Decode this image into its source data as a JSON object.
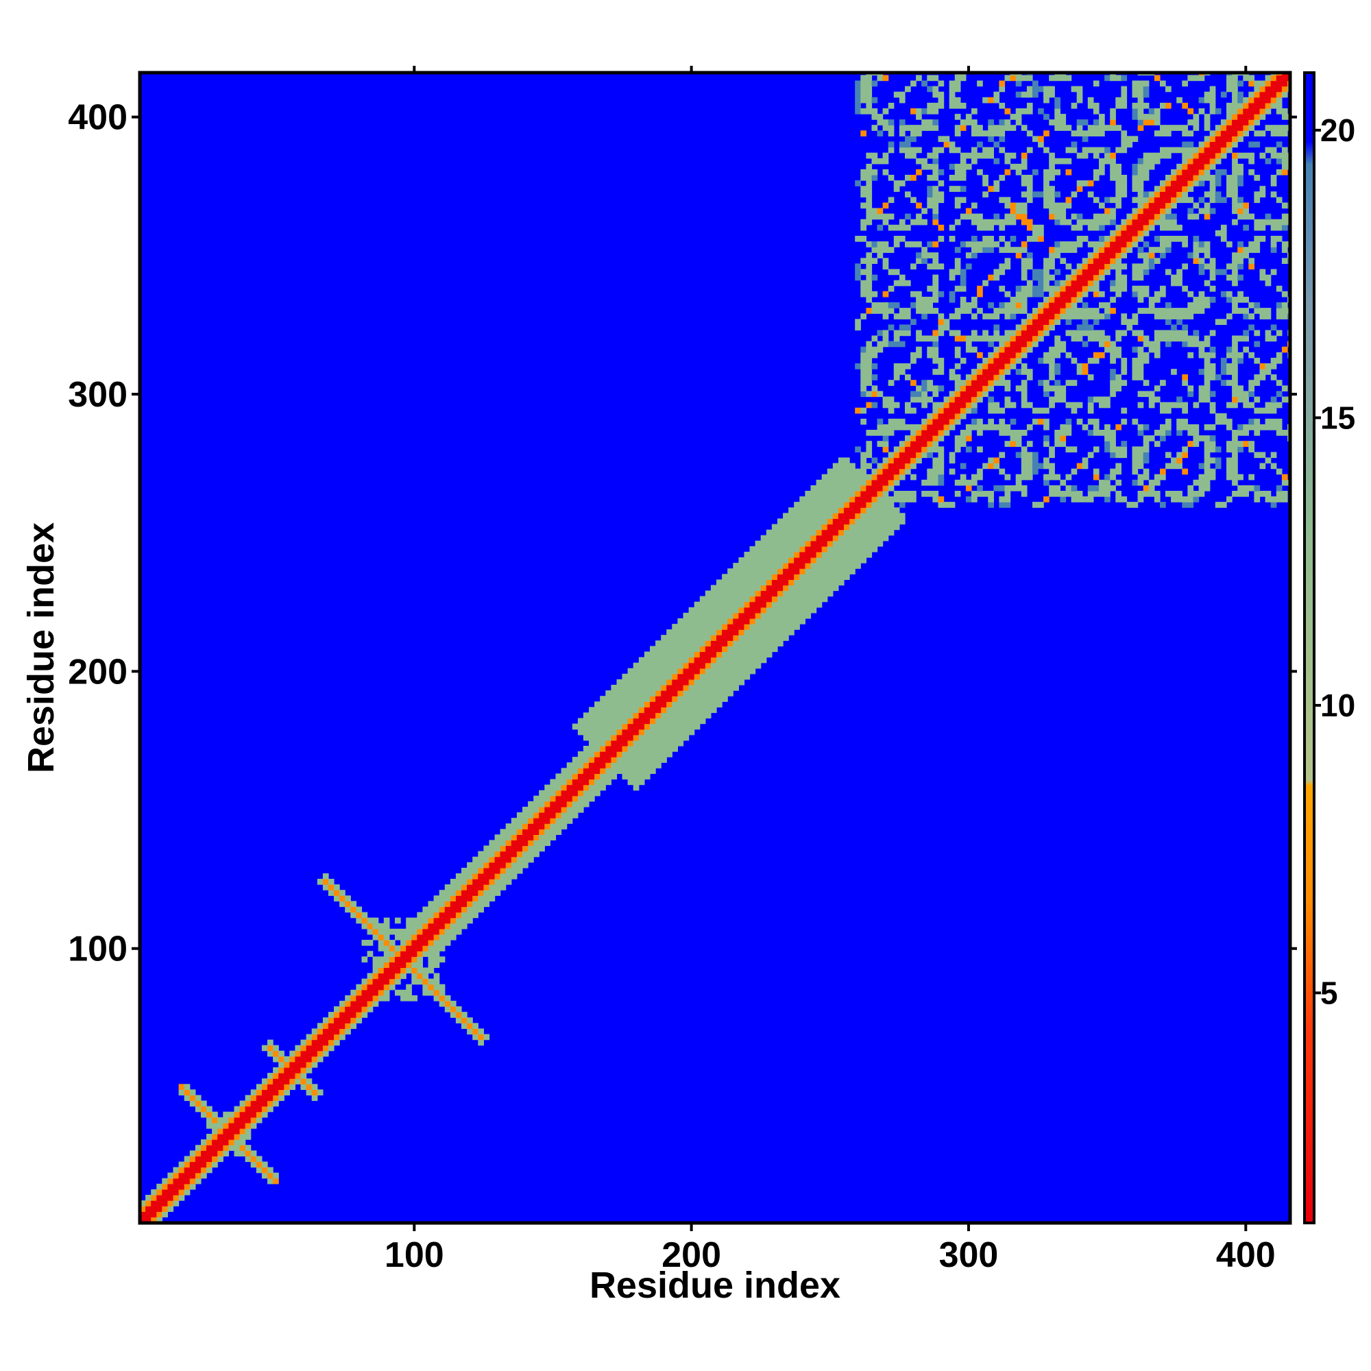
{
  "chart_data": {
    "type": "heatmap",
    "title": "",
    "xlabel": "Residue index",
    "ylabel": "Residue index",
    "n_residues": 416,
    "xlim": [
      1,
      416
    ],
    "ylim": [
      1,
      416
    ],
    "x_ticks": [
      100,
      200,
      300,
      400
    ],
    "y_ticks": [
      100,
      200,
      300,
      400
    ],
    "colorbar": {
      "ticks": [
        5,
        10,
        15,
        20
      ],
      "range": [
        1,
        21
      ],
      "colors": {
        "close": "#e8000b",
        "mid": "#ff8c00",
        "far_band": "#8fbc8f",
        "upper": "#4682b4",
        "background": "#0000ff"
      }
    },
    "regions": [
      {
        "kind": "diagonal_band",
        "from": 1,
        "to": 120,
        "width": 6
      },
      {
        "kind": "diagonal_band",
        "from": 100,
        "to": 168,
        "width": 10
      },
      {
        "kind": "diagonal_band",
        "from": 168,
        "to": 265,
        "width": 22
      },
      {
        "kind": "diagonal_band",
        "from": 265,
        "to": 416,
        "width": 6
      },
      {
        "kind": "cross_contact",
        "center": [
          32,
          32
        ],
        "size": 18
      },
      {
        "kind": "cross_contact",
        "center": [
          55,
          55
        ],
        "size": 10
      },
      {
        "kind": "cross_contact",
        "center": [
          95,
          95
        ],
        "size": 30
      },
      {
        "kind": "domain_lattice",
        "from": 258,
        "to": 416
      }
    ]
  }
}
